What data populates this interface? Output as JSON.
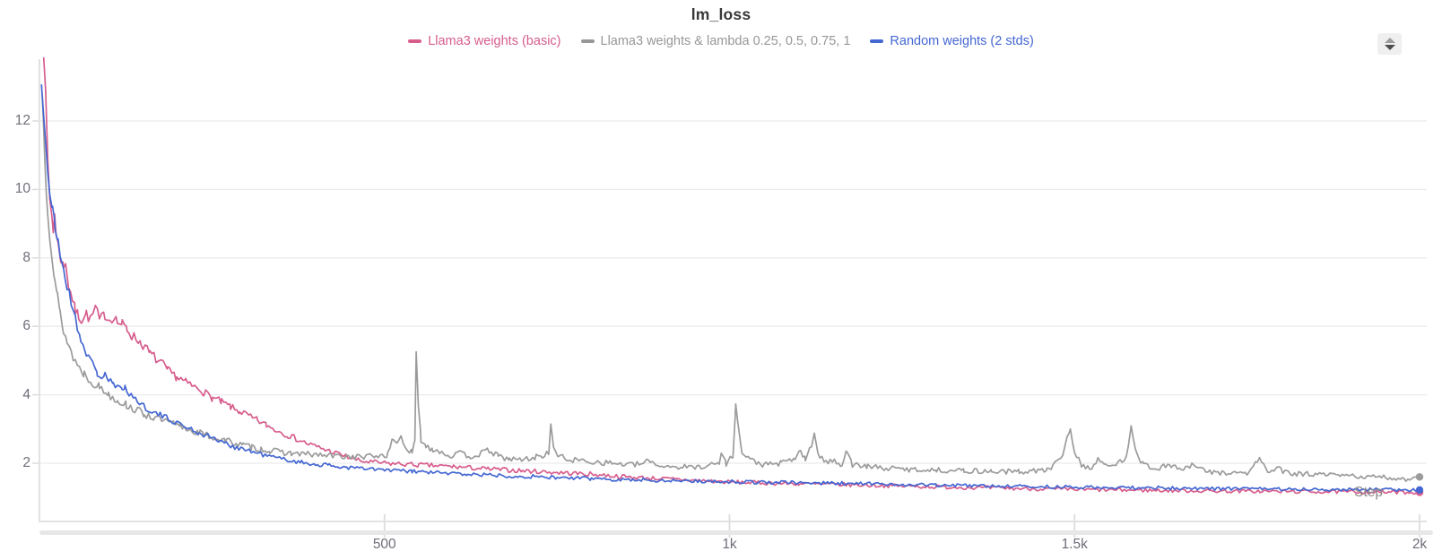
{
  "title": "lm_loss",
  "legend": [
    {
      "label": "Llama3 weights (basic)",
      "color": "#d75d8d"
    },
    {
      "label": "Llama3 weights & lambda 0.25, 0.5, 0.75, 1",
      "color": "#979797"
    },
    {
      "label": "Random weights (2 stds)",
      "color": "#4467d2"
    }
  ],
  "controls": {
    "stepper_icon": "up-down-arrows"
  },
  "axes": {
    "x_label": "Step",
    "x_range": [
      0,
      2000
    ],
    "y_range": [
      0.45,
      13.55
    ],
    "grid": true,
    "x_ticks": [
      {
        "value": 500,
        "label": "500"
      },
      {
        "value": 1000,
        "label": "1k"
      },
      {
        "value": 1500,
        "label": "1.5k"
      },
      {
        "value": 2000,
        "label": "2k"
      }
    ],
    "y_ticks": [
      {
        "value": 2,
        "label": "2"
      },
      {
        "value": 4,
        "label": "4"
      },
      {
        "value": 6,
        "label": "6"
      },
      {
        "value": 8,
        "label": "8"
      },
      {
        "value": 10,
        "label": "10"
      },
      {
        "value": 12,
        "label": "12"
      }
    ]
  },
  "chart_data": {
    "type": "line",
    "xlabel": "Step",
    "title": "lm_loss",
    "legend_position": "top-center",
    "series": [
      {
        "name": "Llama3 weights (basic)",
        "color": "#d75d8d",
        "noise": 1.0,
        "seed": 7,
        "end_marker": true,
        "points": [
          [
            2,
            16
          ],
          [
            6,
            14.2
          ],
          [
            9,
            12.6
          ],
          [
            12,
            10.8
          ],
          [
            15,
            9.7
          ],
          [
            18,
            9.25
          ],
          [
            20,
            8.75
          ],
          [
            22,
            9.4
          ],
          [
            24,
            8.65
          ],
          [
            27,
            8.35
          ],
          [
            31,
            8.0
          ],
          [
            35,
            7.7
          ],
          [
            38,
            7.95
          ],
          [
            42,
            7.2
          ],
          [
            48,
            6.8
          ],
          [
            52,
            6.45
          ],
          [
            57,
            6.3
          ],
          [
            61,
            6.2
          ],
          [
            68,
            6.38
          ],
          [
            74,
            6.18
          ],
          [
            81,
            6.55
          ],
          [
            87,
            6.18
          ],
          [
            95,
            6.35
          ],
          [
            102,
            6.2
          ],
          [
            108,
            6.32
          ],
          [
            113,
            6.12
          ],
          [
            120,
            6.05
          ],
          [
            127,
            5.92
          ],
          [
            134,
            5.72
          ],
          [
            140,
            5.65
          ],
          [
            147,
            5.52
          ],
          [
            153,
            5.4
          ],
          [
            160,
            5.2
          ],
          [
            166,
            5.12
          ],
          [
            173,
            4.95
          ],
          [
            179,
            4.88
          ],
          [
            186,
            4.7
          ],
          [
            192,
            4.62
          ],
          [
            199,
            4.52
          ],
          [
            205,
            4.45
          ],
          [
            212,
            4.36
          ],
          [
            218,
            4.3
          ],
          [
            225,
            4.22
          ],
          [
            231,
            4.18
          ],
          [
            238,
            4.08
          ],
          [
            244,
            4.0
          ],
          [
            251,
            3.9
          ],
          [
            257,
            3.86
          ],
          [
            264,
            3.78
          ],
          [
            270,
            3.72
          ],
          [
            277,
            3.65
          ],
          [
            283,
            3.56
          ],
          [
            290,
            3.52
          ],
          [
            296,
            3.46
          ],
          [
            303,
            3.38
          ],
          [
            309,
            3.3
          ],
          [
            316,
            3.26
          ],
          [
            322,
            3.17
          ],
          [
            329,
            3.12
          ],
          [
            335,
            3.04
          ],
          [
            360,
            2.82
          ],
          [
            390,
            2.56
          ],
          [
            420,
            2.36
          ],
          [
            450,
            2.16
          ],
          [
            465,
            2.06
          ],
          [
            500,
            2.0
          ],
          [
            550,
            1.95
          ],
          [
            600,
            1.9
          ],
          [
            650,
            1.83
          ],
          [
            700,
            1.78
          ],
          [
            750,
            1.73
          ],
          [
            800,
            1.68
          ],
          [
            850,
            1.6
          ],
          [
            900,
            1.55
          ],
          [
            950,
            1.5
          ],
          [
            1000,
            1.45
          ],
          [
            1100,
            1.4
          ],
          [
            1200,
            1.36
          ],
          [
            1300,
            1.31
          ],
          [
            1400,
            1.27
          ],
          [
            1500,
            1.23
          ],
          [
            1600,
            1.21
          ],
          [
            1700,
            1.19
          ],
          [
            1850,
            1.17
          ],
          [
            2000,
            1.15
          ]
        ]
      },
      {
        "name": "Llama3 weights & lambda 0.25, 0.5, 0.75, 1",
        "color": "#9b9b9b",
        "noise": 1.15,
        "seed": 13,
        "end_marker": true,
        "points": [
          [
            4,
            12.75
          ],
          [
            6,
            11.8
          ],
          [
            8,
            10.8
          ],
          [
            10,
            10.1
          ],
          [
            12,
            9.5
          ],
          [
            15,
            8.75
          ],
          [
            18,
            8.2
          ],
          [
            22,
            7.45
          ],
          [
            26,
            6.85
          ],
          [
            30,
            6.35
          ],
          [
            35,
            5.9
          ],
          [
            40,
            5.55
          ],
          [
            46,
            5.25
          ],
          [
            52,
            4.98
          ],
          [
            58,
            4.78
          ],
          [
            65,
            4.62
          ],
          [
            74,
            4.42
          ],
          [
            87,
            4.22
          ],
          [
            100,
            4.02
          ],
          [
            113,
            3.85
          ],
          [
            126,
            3.7
          ],
          [
            139,
            3.56
          ],
          [
            152,
            3.44
          ],
          [
            165,
            3.34
          ],
          [
            178,
            3.25
          ],
          [
            191,
            3.16
          ],
          [
            204,
            3.07
          ],
          [
            217,
            2.99
          ],
          [
            230,
            2.9
          ],
          [
            243,
            2.81
          ],
          [
            256,
            2.73
          ],
          [
            269,
            2.67
          ],
          [
            282,
            2.59
          ],
          [
            295,
            2.52
          ],
          [
            308,
            2.47
          ],
          [
            321,
            2.41
          ],
          [
            334,
            2.36
          ],
          [
            365,
            2.29
          ],
          [
            395,
            2.25
          ],
          [
            430,
            2.21
          ],
          [
            470,
            2.18
          ],
          [
            505,
            2.25
          ],
          [
            513,
            2.75
          ],
          [
            518,
            2.55
          ],
          [
            524,
            2.85
          ],
          [
            530,
            2.45
          ],
          [
            540,
            2.3
          ],
          [
            544,
            2.6
          ],
          [
            546,
            5.3
          ],
          [
            549,
            3.6
          ],
          [
            553,
            2.7
          ],
          [
            560,
            2.5
          ],
          [
            570,
            2.42
          ],
          [
            580,
            2.35
          ],
          [
            594,
            2.22
          ],
          [
            610,
            2.28
          ],
          [
            625,
            2.2
          ],
          [
            640,
            2.28
          ],
          [
            652,
            2.38
          ],
          [
            665,
            2.2
          ],
          [
            681,
            2.12
          ],
          [
            700,
            2.1
          ],
          [
            720,
            2.18
          ],
          [
            738,
            2.3
          ],
          [
            741,
            3.05
          ],
          [
            745,
            2.5
          ],
          [
            752,
            2.2
          ],
          [
            770,
            2.1
          ],
          [
            800,
            2.05
          ],
          [
            830,
            2.0
          ],
          [
            860,
            1.95
          ],
          [
            877,
            2.0
          ],
          [
            885,
            2.1
          ],
          [
            893,
            1.95
          ],
          [
            920,
            1.9
          ],
          [
            950,
            1.88
          ],
          [
            985,
            2.0
          ],
          [
            988,
            2.3
          ],
          [
            995,
            2.0
          ],
          [
            1005,
            2.2
          ],
          [
            1009,
            3.83
          ],
          [
            1013,
            3.0
          ],
          [
            1018,
            2.3
          ],
          [
            1030,
            2.1
          ],
          [
            1050,
            1.95
          ],
          [
            1075,
            2.0
          ],
          [
            1095,
            2.15
          ],
          [
            1103,
            2.36
          ],
          [
            1110,
            2.1
          ],
          [
            1119,
            2.5
          ],
          [
            1123,
            2.93
          ],
          [
            1128,
            2.3
          ],
          [
            1140,
            2.0
          ],
          [
            1152,
            2.1
          ],
          [
            1163,
            1.95
          ],
          [
            1170,
            2.4
          ],
          [
            1178,
            1.95
          ],
          [
            1200,
            1.9
          ],
          [
            1230,
            1.85
          ],
          [
            1260,
            1.82
          ],
          [
            1300,
            1.8
          ],
          [
            1340,
            1.78
          ],
          [
            1380,
            1.76
          ],
          [
            1420,
            1.75
          ],
          [
            1460,
            1.8
          ],
          [
            1480,
            2.1
          ],
          [
            1494,
            3.07
          ],
          [
            1500,
            2.3
          ],
          [
            1510,
            1.95
          ],
          [
            1525,
            1.85
          ],
          [
            1534,
            2.15
          ],
          [
            1545,
            1.9
          ],
          [
            1560,
            1.95
          ],
          [
            1575,
            2.2
          ],
          [
            1582,
            3.1
          ],
          [
            1590,
            2.3
          ],
          [
            1600,
            1.95
          ],
          [
            1620,
            1.85
          ],
          [
            1640,
            1.95
          ],
          [
            1655,
            1.8
          ],
          [
            1673,
            1.95
          ],
          [
            1690,
            1.75
          ],
          [
            1720,
            1.72
          ],
          [
            1750,
            1.7
          ],
          [
            1768,
            2.13
          ],
          [
            1780,
            1.75
          ],
          [
            1793,
            1.85
          ],
          [
            1810,
            1.7
          ],
          [
            1840,
            1.68
          ],
          [
            1870,
            1.65
          ],
          [
            1900,
            1.63
          ],
          [
            1930,
            1.6
          ],
          [
            1960,
            1.57
          ],
          [
            1980,
            1.52
          ],
          [
            1995,
            1.62
          ],
          [
            2000,
            1.6
          ]
        ]
      },
      {
        "name": "Random weights (2 stds)",
        "color": "#4467d2",
        "noise": 0.9,
        "seed": 21,
        "end_marker": true,
        "points": [
          [
            3,
            13.05
          ],
          [
            6,
            12.2
          ],
          [
            9,
            11.4
          ],
          [
            12,
            10.6
          ],
          [
            15,
            9.9
          ],
          [
            19,
            9.35
          ],
          [
            23,
            8.85
          ],
          [
            27,
            8.45
          ],
          [
            32,
            7.95
          ],
          [
            37,
            7.45
          ],
          [
            43,
            6.95
          ],
          [
            49,
            6.45
          ],
          [
            55,
            6.0
          ],
          [
            60,
            5.62
          ],
          [
            65,
            5.35
          ],
          [
            71,
            5.12
          ],
          [
            77,
            4.88
          ],
          [
            84,
            4.62
          ],
          [
            90,
            4.5
          ],
          [
            95,
            4.62
          ],
          [
            100,
            4.42
          ],
          [
            107,
            4.3
          ],
          [
            113,
            4.2
          ],
          [
            120,
            4.12
          ],
          [
            124,
            4.28
          ],
          [
            130,
            4.05
          ],
          [
            139,
            3.87
          ],
          [
            148,
            3.72
          ],
          [
            157,
            3.6
          ],
          [
            166,
            3.48
          ],
          [
            175,
            3.4
          ],
          [
            184,
            3.32
          ],
          [
            193,
            3.25
          ],
          [
            202,
            3.15
          ],
          [
            211,
            3.08
          ],
          [
            220,
            3.0
          ],
          [
            229,
            2.9
          ],
          [
            238,
            2.84
          ],
          [
            247,
            2.78
          ],
          [
            256,
            2.7
          ],
          [
            265,
            2.6
          ],
          [
            274,
            2.54
          ],
          [
            283,
            2.48
          ],
          [
            292,
            2.44
          ],
          [
            301,
            2.38
          ],
          [
            315,
            2.3
          ],
          [
            330,
            2.22
          ],
          [
            345,
            2.15
          ],
          [
            360,
            2.1
          ],
          [
            380,
            2.02
          ],
          [
            400,
            1.97
          ],
          [
            420,
            1.93
          ],
          [
            445,
            1.88
          ],
          [
            465,
            1.85
          ],
          [
            500,
            1.8
          ],
          [
            540,
            1.76
          ],
          [
            580,
            1.72
          ],
          [
            620,
            1.68
          ],
          [
            660,
            1.65
          ],
          [
            700,
            1.62
          ],
          [
            750,
            1.58
          ],
          [
            800,
            1.55
          ],
          [
            854,
            1.52
          ],
          [
            900,
            1.5
          ],
          [
            1000,
            1.46
          ],
          [
            1100,
            1.43
          ],
          [
            1200,
            1.4
          ],
          [
            1300,
            1.36
          ],
          [
            1400,
            1.33
          ],
          [
            1500,
            1.3
          ],
          [
            1600,
            1.28
          ],
          [
            1700,
            1.26
          ],
          [
            1850,
            1.24
          ],
          [
            2000,
            1.22
          ]
        ]
      }
    ]
  },
  "style": {
    "grid_color": "#ebebeb",
    "axis_color": "#e2e2e2",
    "tick_color": "#dcdcdc",
    "tick_label_color": "#6e6e7a",
    "title_color": "#383838"
  }
}
